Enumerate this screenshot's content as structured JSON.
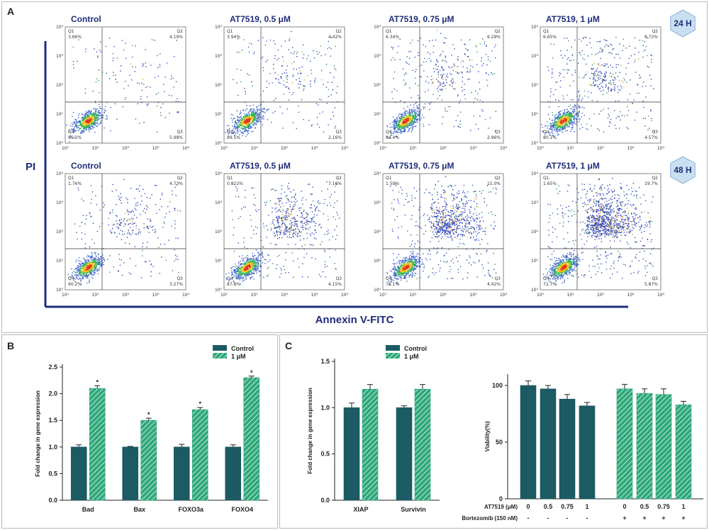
{
  "panel_labels": {
    "a": "A",
    "b": "B",
    "c": "C"
  },
  "panel_a": {
    "axis_y": "PI",
    "axis_x": "Annexin V-FITC",
    "quadrant_names": [
      "Q1",
      "Q2",
      "Q3",
      "Q4"
    ],
    "tick_labels": [
      "10⁰",
      "10¹",
      "10²",
      "10³",
      "10⁴"
    ],
    "rows": [
      {
        "time": "24 H",
        "plots": [
          {
            "title": "Control",
            "q1": "3.66%",
            "q2": "4.19%",
            "q3": "5.98%",
            "q4": "86.2%"
          },
          {
            "title": "AT7519, 0.5 μM",
            "q1": "3.94%",
            "q2": "4.42%",
            "q3": "2.16%",
            "q4": "89.5%"
          },
          {
            "title": "AT7519, 0.75 μM",
            "q1": "6.34%",
            "q2": "6.29%",
            "q3": "2.96%",
            "q4": "84.4%"
          },
          {
            "title": "AT7519, 1 μM",
            "q1": "6.65%",
            "q2": "8.72%",
            "q3": "4.57%",
            "q4": "80.1%"
          }
        ]
      },
      {
        "time": "48 H",
        "plots": [
          {
            "title": "Control",
            "q1": "1.76%",
            "q2": "4.73%",
            "q3": "3.27%",
            "q4": "90.2%"
          },
          {
            "title": "AT7519, 0.5 μM",
            "q1": "0.822%",
            "q2": "7.16%",
            "q3": "4.15%",
            "q4": "87.8%"
          },
          {
            "title": "AT7519, 0.75 μM",
            "q1": "1.50%",
            "q2": "15.0%",
            "q3": "4.42%",
            "q4": "79.1%"
          },
          {
            "title": "AT7519, 1 μM",
            "q1": "1.65%",
            "q2": "19.7%",
            "q3": "5.87%",
            "q4": "72.7%"
          }
        ]
      }
    ]
  },
  "chart_data": [
    {
      "type": "bar",
      "panel": "B",
      "ylabel": "Fold change in gene expression",
      "ylim": [
        0,
        2.5
      ],
      "yticks": [
        "0.0",
        "0.5",
        "1.0",
        "1.5",
        "2.0",
        "2.5"
      ],
      "categories": [
        "Bad",
        "Bax",
        "FOXO3a",
        "FOXO4"
      ],
      "series": [
        {
          "name": "Control",
          "values": [
            1.0,
            1.0,
            1.0,
            1.0
          ],
          "errors": [
            0.04,
            0.01,
            0.05,
            0.04
          ]
        },
        {
          "name": "1 μM",
          "values": [
            2.1,
            1.5,
            1.7,
            2.3
          ],
          "errors": [
            0.05,
            0.04,
            0.04,
            0.03
          ]
        }
      ],
      "annotations": [
        "*",
        "*",
        "*",
        "*"
      ],
      "legend": "top-right"
    },
    {
      "type": "bar",
      "panel": "C-left",
      "ylabel": "Fold change in gene expression",
      "ylim": [
        0,
        1.5
      ],
      "yticks": [
        "0.0",
        "0.5",
        "1.0",
        "1.5"
      ],
      "categories": [
        "XIAP",
        "Survivin"
      ],
      "series": [
        {
          "name": "Control",
          "values": [
            1.0,
            1.0
          ],
          "errors": [
            0.05,
            0.02
          ]
        },
        {
          "name": "1 μM",
          "values": [
            1.2,
            1.2
          ],
          "errors": [
            0.05,
            0.05
          ]
        }
      ],
      "legend": "top"
    },
    {
      "type": "bar",
      "panel": "C-right",
      "ylabel": "Viability(%)",
      "ylim": [
        0,
        110
      ],
      "yticks": [
        "0",
        "50",
        "100"
      ],
      "row_labels": [
        "AT7519 (μM)",
        "Bortezomib (150 nM)"
      ],
      "at7519": [
        "0",
        "0.5",
        "0.75",
        "1",
        "0",
        "0.5",
        "0.75",
        "1"
      ],
      "bortezomib": [
        "-",
        "-",
        "-",
        "-",
        "+",
        "+",
        "+",
        "+"
      ],
      "values": [
        100,
        97,
        88,
        82,
        97,
        93,
        92,
        83
      ],
      "errors": [
        4,
        3,
        4,
        3,
        4,
        4,
        5,
        3
      ],
      "groups": [
        "solid",
        "solid",
        "solid",
        "solid",
        "hatched",
        "hatched",
        "hatched",
        "hatched"
      ]
    }
  ],
  "colors": {
    "control": "#1c5a64",
    "treated": "#2ea87a",
    "axis_blue": "#1f2d7a",
    "hex_fill": "#c9dff2"
  }
}
